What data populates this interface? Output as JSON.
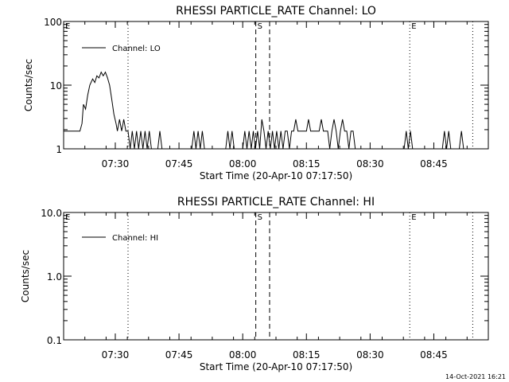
{
  "chart_data": [
    {
      "type": "line",
      "title": "RHESSI PARTICLE_RATE Channel: LO",
      "xlabel": "Start Time (20-Apr-10 07:17:50)",
      "ylabel": "Counts/sec",
      "yscale": "log",
      "ylim": [
        1,
        100
      ],
      "y_tick_labels": [
        "1",
        "10",
        "100"
      ],
      "xlim_minutes_after_start": [
        0,
        100
      ],
      "x_tick_labels": [
        "07:30",
        "07:45",
        "08:00",
        "08:15",
        "08:30",
        "08:45"
      ],
      "grid": false,
      "legend_position": "top-left",
      "series": [
        {
          "name": "Channel: LO",
          "color": "#000000",
          "points": [
            [
              "07:17:50",
              1.9
            ],
            [
              "07:21:40",
              1.9
            ],
            [
              "07:22:10",
              2.5
            ],
            [
              "07:22:30",
              5.0
            ],
            [
              "07:23:00",
              4.2
            ],
            [
              "07:23:30",
              7.0
            ],
            [
              "07:24:00",
              10.0
            ],
            [
              "07:24:40",
              12.5
            ],
            [
              "07:25:10",
              11.0
            ],
            [
              "07:25:40",
              14.0
            ],
            [
              "07:26:10",
              13.0
            ],
            [
              "07:26:40",
              16.0
            ],
            [
              "07:27:10",
              14.0
            ],
            [
              "07:27:40",
              16.0
            ],
            [
              "07:28:10",
              13.0
            ],
            [
              "07:28:40",
              10.0
            ],
            [
              "07:29:10",
              6.0
            ],
            [
              "07:29:40",
              3.5
            ],
            [
              "07:30:10",
              2.5
            ],
            [
              "07:30:30",
              1.9
            ],
            [
              "07:31:00",
              2.9
            ],
            [
              "07:31:30",
              1.9
            ],
            [
              "07:32:00",
              2.9
            ],
            [
              "07:32:30",
              1.9
            ],
            [
              "07:33:00",
              1.9
            ],
            [
              "07:33:30",
              1.0
            ],
            [
              "07:34:00",
              1.9
            ],
            [
              "07:34:30",
              1.0
            ],
            [
              "07:35:00",
              1.9
            ],
            [
              "07:35:30",
              1.0
            ],
            [
              "07:36:00",
              1.9
            ],
            [
              "07:36:30",
              1.0
            ],
            [
              "07:37:00",
              1.9
            ],
            [
              "07:37:30",
              1.0
            ],
            [
              "07:38:00",
              1.9
            ],
            [
              "07:38:30",
              1.0
            ],
            [
              "07:40:00",
              1.0
            ],
            [
              "07:40:30",
              1.9
            ],
            [
              "07:41:00",
              1.0
            ],
            [
              "07:48:00",
              1.0
            ],
            [
              "07:48:30",
              1.9
            ],
            [
              "07:49:00",
              1.0
            ],
            [
              "07:49:30",
              1.9
            ],
            [
              "07:50:00",
              1.0
            ],
            [
              "07:50:30",
              1.9
            ],
            [
              "07:51:00",
              1.0
            ],
            [
              "07:56:00",
              1.0
            ],
            [
              "07:56:30",
              1.9
            ],
            [
              "07:57:00",
              1.0
            ],
            [
              "07:57:30",
              1.9
            ],
            [
              "07:58:00",
              1.0
            ],
            [
              "08:00:00",
              1.0
            ],
            [
              "08:00:30",
              1.9
            ],
            [
              "08:01:00",
              1.0
            ],
            [
              "08:01:30",
              1.9
            ],
            [
              "08:02:00",
              1.0
            ],
            [
              "08:02:30",
              1.9
            ],
            [
              "08:03:00",
              1.0
            ],
            [
              "08:03:30",
              1.9
            ],
            [
              "08:04:00",
              1.0
            ],
            [
              "08:04:30",
              2.9
            ],
            [
              "08:05:00",
              1.9
            ],
            [
              "08:05:30",
              1.0
            ],
            [
              "08:06:00",
              1.9
            ],
            [
              "08:06:30",
              1.0
            ],
            [
              "08:07:00",
              1.9
            ],
            [
              "08:07:30",
              1.0
            ],
            [
              "08:08:00",
              1.9
            ],
            [
              "08:08:30",
              1.0
            ],
            [
              "08:09:00",
              1.9
            ],
            [
              "08:09:30",
              1.0
            ],
            [
              "08:10:00",
              1.9
            ],
            [
              "08:10:30",
              1.9
            ],
            [
              "08:11:00",
              1.0
            ],
            [
              "08:11:30",
              1.9
            ],
            [
              "08:12:00",
              1.9
            ],
            [
              "08:12:30",
              2.9
            ],
            [
              "08:13:00",
              1.9
            ],
            [
              "08:15:00",
              1.9
            ],
            [
              "08:15:30",
              2.9
            ],
            [
              "08:16:00",
              1.9
            ],
            [
              "08:18:00",
              1.9
            ],
            [
              "08:18:30",
              2.9
            ],
            [
              "08:19:00",
              1.9
            ],
            [
              "08:20:00",
              1.9
            ],
            [
              "08:20:30",
              1.0
            ],
            [
              "08:21:00",
              1.9
            ],
            [
              "08:21:30",
              2.9
            ],
            [
              "08:22:00",
              1.9
            ],
            [
              "08:22:30",
              1.0
            ],
            [
              "08:23:00",
              1.9
            ],
            [
              "08:23:30",
              2.9
            ],
            [
              "08:24:00",
              1.9
            ],
            [
              "08:24:30",
              1.9
            ],
            [
              "08:25:00",
              1.0
            ],
            [
              "08:25:30",
              1.9
            ],
            [
              "08:26:00",
              1.9
            ],
            [
              "08:26:30",
              1.0
            ],
            [
              "08:38:00",
              1.0
            ],
            [
              "08:38:30",
              1.9
            ],
            [
              "08:39:00",
              1.0
            ],
            [
              "08:39:30",
              1.9
            ],
            [
              "08:40:00",
              1.0
            ],
            [
              "08:47:00",
              1.0
            ],
            [
              "08:47:30",
              1.9
            ],
            [
              "08:48:00",
              1.0
            ],
            [
              "08:48:30",
              1.9
            ],
            [
              "08:49:00",
              1.0
            ],
            [
              "08:51:00",
              1.0
            ],
            [
              "08:51:30",
              1.9
            ],
            [
              "08:52:00",
              1.0
            ]
          ]
        }
      ],
      "markers": [
        {
          "label": "E",
          "time": "07:17:50",
          "style": "none"
        },
        {
          "label": "",
          "time": "07:33:00",
          "style": "dotted"
        },
        {
          "label": "S",
          "time": "08:03:05",
          "style": "dashed"
        },
        {
          "label": "",
          "time": "08:06:20",
          "style": "dashed"
        },
        {
          "label": "E",
          "time": "08:39:20",
          "style": "dotted"
        },
        {
          "label": "",
          "time": "08:54:10",
          "style": "dotted"
        }
      ]
    },
    {
      "type": "line",
      "title": "RHESSI PARTICLE_RATE Channel: HI",
      "xlabel": "Start Time (20-Apr-10 07:17:50)",
      "ylabel": "Counts/sec",
      "yscale": "log",
      "ylim": [
        0.1,
        10
      ],
      "y_tick_labels": [
        "0.1",
        "1.0",
        "10.0"
      ],
      "xlim_minutes_after_start": [
        0,
        100
      ],
      "x_tick_labels": [
        "07:30",
        "07:45",
        "08:00",
        "08:15",
        "08:30",
        "08:45"
      ],
      "grid": false,
      "legend_position": "top-left",
      "series": [
        {
          "name": "Channel: HI",
          "color": "#000000",
          "points": []
        }
      ],
      "markers": [
        {
          "label": "E",
          "time": "07:17:50",
          "style": "none"
        },
        {
          "label": "",
          "time": "07:33:00",
          "style": "dotted"
        },
        {
          "label": "S",
          "time": "08:03:05",
          "style": "dashed"
        },
        {
          "label": "",
          "time": "08:06:20",
          "style": "dashed"
        },
        {
          "label": "E",
          "time": "08:39:20",
          "style": "dotted"
        },
        {
          "label": "",
          "time": "08:54:10",
          "style": "dotted"
        }
      ]
    }
  ],
  "timestamp": "14-Oct-2021 16:21"
}
